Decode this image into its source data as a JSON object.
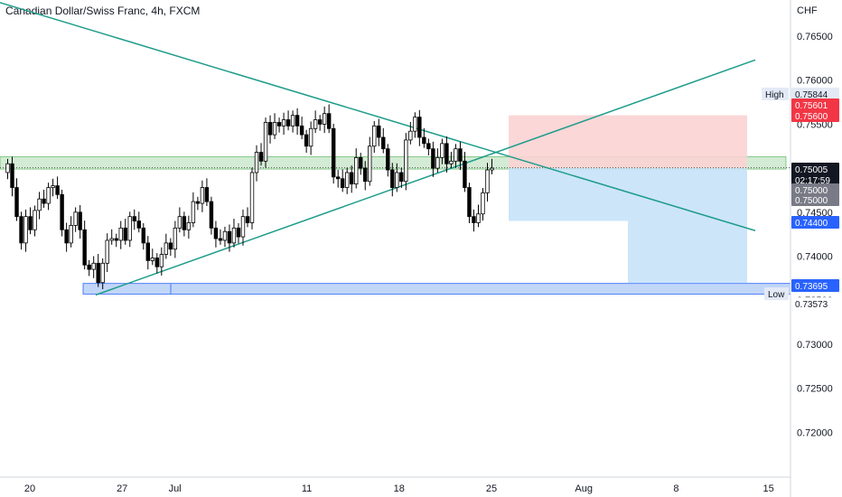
{
  "title": "Canadian Dollar/Swiss Franc, 4h, FXCM",
  "currency_label": "CHF",
  "colors": {
    "up_candle": "#ffffff",
    "down_candle": "#000000",
    "trendline": "#1e9c8a",
    "support_zone": "#c8e6c9",
    "low_zone": "#90b4f0",
    "target_zone": "#c7e2f8",
    "stop_zone": "#fbd3d3",
    "tag_red": "#f23645",
    "tag_blue": "#2962ff",
    "tag_dark": "#131722",
    "tag_gray": "#787b86"
  },
  "chart_data": {
    "type": "candlestick",
    "title": "Canadian Dollar/Swiss Franc, 4h, FXCM",
    "y_unit": "CHF",
    "ylim": [
      0.7145,
      0.7695
    ],
    "x_tick_labels": [
      "20",
      "27",
      "Jul",
      "11",
      "18",
      "25",
      "Aug",
      "8",
      "15"
    ],
    "y_tick_labels": [
      "0.76500",
      "0.76000",
      "0.75500",
      "0.75000",
      "0.74500",
      "0.74000",
      "0.73500",
      "0.73000",
      "0.72500",
      "0.72000"
    ],
    "y_ticks": [
      0.765,
      0.76,
      0.755,
      0.75,
      0.745,
      0.74,
      0.735,
      0.73,
      0.725,
      0.72
    ],
    "price_path": [
      0.7495,
      0.7505,
      0.7478,
      0.7445,
      0.7415,
      0.7445,
      0.743,
      0.7452,
      0.7465,
      0.746,
      0.7478,
      0.748,
      0.747,
      0.743,
      0.7415,
      0.7435,
      0.745,
      0.743,
      0.739,
      0.7385,
      0.7392,
      0.737,
      0.7392,
      0.7418,
      0.742,
      0.7418,
      0.7432,
      0.7418,
      0.7445,
      0.744,
      0.7432,
      0.7415,
      0.7395,
      0.7398,
      0.7388,
      0.7402,
      0.7415,
      0.7408,
      0.7432,
      0.7445,
      0.743,
      0.7438,
      0.7462,
      0.746,
      0.7478,
      0.7462,
      0.7432,
      0.742,
      0.7418,
      0.7428,
      0.7415,
      0.7432,
      0.7422,
      0.7445,
      0.7438,
      0.7495,
      0.7518,
      0.7508,
      0.7552,
      0.7538,
      0.7552,
      0.7548,
      0.7555,
      0.7548,
      0.756,
      0.7548,
      0.7538,
      0.7525,
      0.7545,
      0.7555,
      0.755,
      0.7562,
      0.7545,
      0.749,
      0.7488,
      0.7478,
      0.7495,
      0.7482,
      0.7512,
      0.75,
      0.7485,
      0.7525,
      0.7548,
      0.7535,
      0.7522,
      0.7498,
      0.7478,
      0.7495,
      0.7485,
      0.7532,
      0.7542,
      0.7558,
      0.7535,
      0.7528,
      0.7522,
      0.75,
      0.7512,
      0.7528,
      0.7505,
      0.7508,
      0.7522,
      0.7508,
      0.7478,
      0.7445,
      0.7438,
      0.7448,
      0.7472,
      0.7498,
      0.75
    ],
    "last_price": 0.75005,
    "countdown": "02:17:59",
    "high_label": "High",
    "high_value": "0.75844",
    "low_label": "Low",
    "low_value": "0.73573",
    "trendlines": [
      {
        "name": "descending resistance",
        "from": {
          "date": "Jun 16",
          "price": 0.7696
        },
        "to": {
          "date": "Aug 14",
          "price": 0.7429
        }
      },
      {
        "name": "ascending support",
        "from": {
          "date": "Jun 25",
          "price": 0.7356
        },
        "to": {
          "date": "Aug 14",
          "price": 0.7623
        }
      }
    ],
    "zones": [
      {
        "name": "support zone",
        "from": 0.7499,
        "to": 0.7513
      },
      {
        "name": "low zone",
        "from": 0.7357,
        "to": 0.7369
      }
    ],
    "position": {
      "entry": 0.75,
      "stop": 0.75601,
      "stop_label_value": "0.75600",
      "target_1": 0.744,
      "target_2": 0.73695
    },
    "price_tags": [
      {
        "value": "0.75601",
        "kind": "red"
      },
      {
        "value": "0.75600",
        "kind": "red"
      },
      {
        "value": "0.75005",
        "kind": "dark"
      },
      {
        "value": "02:17:59",
        "kind": "dark"
      },
      {
        "value": "0.75000",
        "kind": "gray"
      },
      {
        "value": "0.75000",
        "kind": "gray"
      },
      {
        "value": "0.74400",
        "kind": "blue"
      },
      {
        "value": "0.73695",
        "kind": "blue"
      }
    ]
  }
}
